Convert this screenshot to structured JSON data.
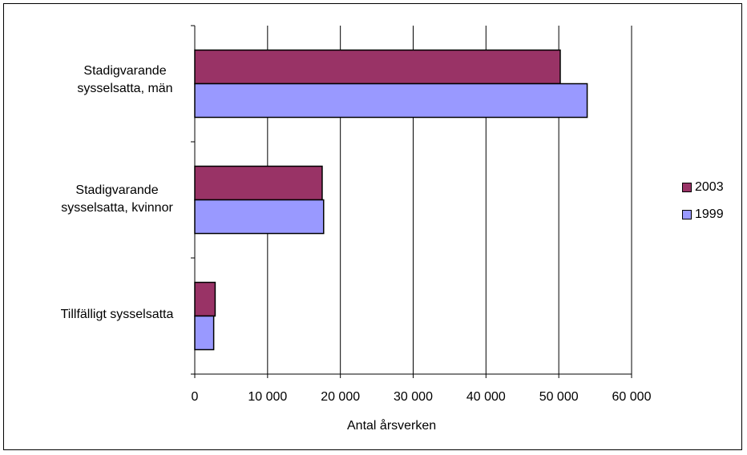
{
  "chart_data": {
    "type": "bar",
    "orientation": "horizontal",
    "categories": [
      "Stadigvarande\nsysselsatta, män",
      "Stadigvarande\nsysselsatta, kvinnor",
      "Tillfälligt sysselsatta"
    ],
    "series": [
      {
        "name": "2003",
        "values": [
          50200,
          17500,
          2800
        ],
        "color": "#993366"
      },
      {
        "name": "1999",
        "values": [
          53900,
          17700,
          2600
        ],
        "color": "#9999FF"
      }
    ],
    "xlabel": "Antal årsverken",
    "xlim": [
      0,
      60000
    ],
    "xticks": [
      0,
      10000,
      20000,
      30000,
      40000,
      50000,
      60000
    ],
    "xtick_labels": [
      "0",
      "10 000",
      "20 000",
      "30 000",
      "40 000",
      "50 000",
      "60 000"
    ],
    "grid": "vertical",
    "legend_position": "right"
  }
}
